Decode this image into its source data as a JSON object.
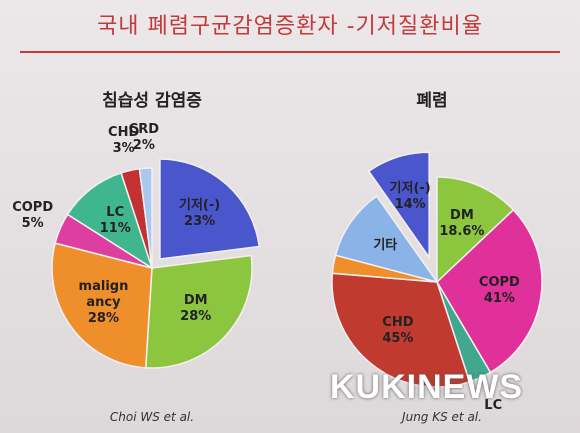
{
  "title": "국내 폐렴구균감염증환자 -기저질환비율",
  "chart_data": [
    {
      "type": "pie",
      "title": "침습성 감염증",
      "source": "Choi WS et al.",
      "categories": [
        "기저(-)",
        "DM",
        "malign ancy",
        "COPD",
        "LC",
        "CHD",
        "CRD"
      ],
      "values": [
        23,
        28,
        28,
        5,
        11,
        3,
        2
      ],
      "value_labels": [
        "23%",
        "28%",
        "28%",
        "5%",
        "11%",
        "3%",
        "2%"
      ],
      "colors": [
        "#4a56cc",
        "#8cc63f",
        "#ef8f2c",
        "#dd3fa0",
        "#3fb68e",
        "#c23232",
        "#a9c8ef"
      ],
      "explode": [
        true,
        false,
        false,
        false,
        false,
        false,
        false
      ]
    },
    {
      "type": "pie",
      "title": "폐렴",
      "source": "Jung KS et al.",
      "categories": [
        "DM",
        "COPD",
        "LC",
        "CHD",
        null,
        "기타",
        "기저(-)"
      ],
      "values": [
        18.6,
        41,
        5,
        45,
        4,
        16,
        14
      ],
      "value_labels": [
        "18.6%",
        "41%",
        null,
        "45%",
        null,
        null,
        "14%"
      ],
      "colors": [
        "#8cc63f",
        "#e0309a",
        "#3fa88e",
        "#c03a30",
        "#ef8f2c",
        "#8ab4e8",
        "#4a56cc"
      ],
      "explode": [
        false,
        false,
        false,
        false,
        false,
        false,
        true
      ]
    }
  ],
  "watermark": "KUKINEWS"
}
